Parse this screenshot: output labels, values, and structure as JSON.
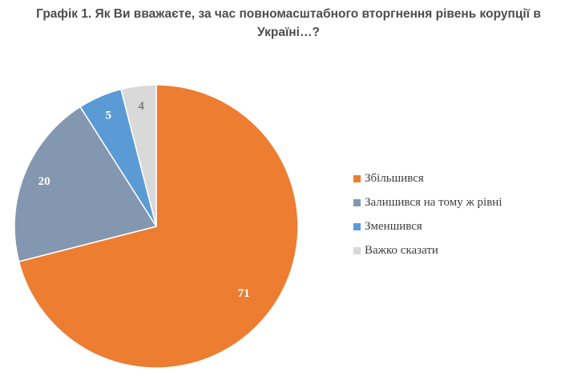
{
  "title": {
    "line1": "Графік 1. Як Ви вважаєте, за час повномасштабного вторгнення рівень корупції в",
    "line2": "Україні…?"
  },
  "colors": {
    "increased": "#ED7D31",
    "same": "#8497B0",
    "decreased": "#5B9BD5",
    "hard": "#D9D9D9",
    "label_dark": "#404040",
    "label_light": "#ffffff",
    "label_muted": "#7f7f7f"
  },
  "chart_data": {
    "type": "pie",
    "title": "Графік 1. Як Ви вважаєте, за час повномасштабного вторгнення рівень корупції в Україні…?",
    "legend_position": "right",
    "categories": [
      "Збільшився",
      "Залишився на тому ж рівні",
      "Зменшився",
      "Важко сказати"
    ],
    "values": [
      71,
      20,
      5,
      4
    ],
    "labels": [
      "71",
      "20",
      "5",
      "4"
    ]
  }
}
